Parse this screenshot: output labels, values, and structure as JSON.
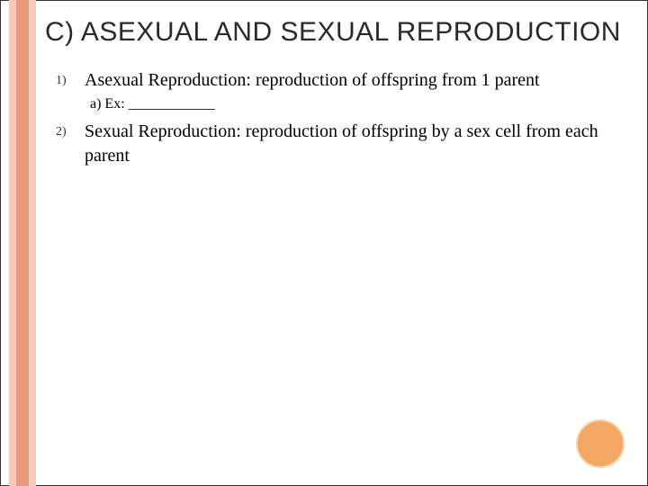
{
  "title": "C) ASEXUAL AND SEXUAL REPRODUCTION",
  "items": [
    {
      "num": "1)",
      "text": "Asexual Reproduction: reproduction of offspring from 1 parent",
      "sub": "a) Ex: ____________"
    },
    {
      "num": "2)",
      "text": "Sexual Reproduction: reproduction of offspring by a sex cell from each parent",
      "sub": null
    }
  ],
  "colors": {
    "stripe_outer": "#f4cbb8",
    "stripe_inner": "#e89a7a",
    "circle_fill": "#f4a864",
    "circle_border": "#f8d5a8",
    "background": "#ffffff"
  }
}
